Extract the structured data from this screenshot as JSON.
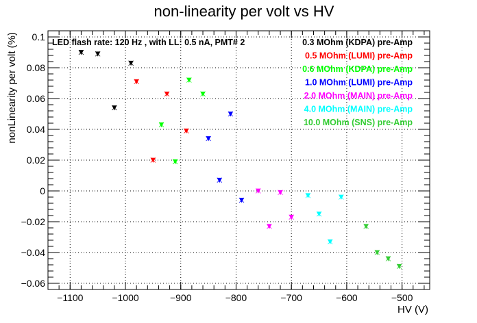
{
  "chart_data": {
    "type": "scatter",
    "title": "non-linearity per volt vs HV",
    "xlabel": "HV (V)",
    "ylabel": "nonLinearity per volt (%)",
    "xlim": [
      -1140,
      -450
    ],
    "ylim": [
      -0.064,
      0.104
    ],
    "grid": true,
    "x_ticks": [
      -1100,
      -1000,
      -900,
      -800,
      -700,
      -600,
      -500
    ],
    "y_ticks": [
      -0.06,
      -0.04,
      -0.02,
      0,
      0.02,
      0.04,
      0.06,
      0.08,
      0.1
    ],
    "x_tick_labels": [
      "−1100",
      "−1000",
      "−900",
      "−800",
      "−700",
      "−600",
      "−500"
    ],
    "y_tick_labels": [
      "−0.06",
      "−0.04",
      "−0.02",
      "0",
      "0.02",
      "0.04",
      "0.06",
      "0.08",
      "0.1"
    ],
    "annotation": "LED flash rate: 120 Hz , with LL: 0.5 nA, PMT# 2",
    "legend_position": "top-right",
    "series": [
      {
        "name": "0.3 MOhm (KDPA) pre-Amp",
        "color": "#000000",
        "x": [
          -1080,
          -1050,
          -1020,
          -990
        ],
        "y": [
          0.09,
          0.089,
          0.054,
          0.083
        ]
      },
      {
        "name": "0.5 MOhm (LUMI) pre-Amp",
        "color": "#ff0000",
        "x": [
          -980,
          -950,
          -925,
          -890
        ],
        "y": [
          0.071,
          0.02,
          0.063,
          0.039
        ]
      },
      {
        "name": "0.6 MOhm (KDPA) pre-Amp",
        "color": "#00ff00",
        "x": [
          -935,
          -910,
          -885,
          -860
        ],
        "y": [
          0.043,
          0.019,
          0.072,
          0.063
        ]
      },
      {
        "name": "1.0 MOhm (LUMI) pre-Amp",
        "color": "#0000ff",
        "x": [
          -850,
          -830,
          -810,
          -790
        ],
        "y": [
          0.034,
          0.007,
          0.05,
          -0.006
        ]
      },
      {
        "name": "2.0 MOhm (MAIN) pre-Amp",
        "color": "#ff00ff",
        "x": [
          -760,
          -740,
          -720,
          -700
        ],
        "y": [
          0.0,
          -0.023,
          -0.001,
          -0.017
        ]
      },
      {
        "name": "4.0 MOhm (MAIN) pre-Amp",
        "color": "#00ffff",
        "x": [
          -670,
          -650,
          -630,
          -610
        ],
        "y": [
          -0.003,
          -0.015,
          -0.033,
          -0.004
        ]
      },
      {
        "name": "10.0 MOhm (SNS) pre-Amp",
        "color": "#33cc33",
        "x": [
          -565,
          -545,
          -525,
          -505
        ],
        "y": [
          -0.023,
          -0.04,
          -0.044,
          -0.049
        ]
      }
    ]
  }
}
